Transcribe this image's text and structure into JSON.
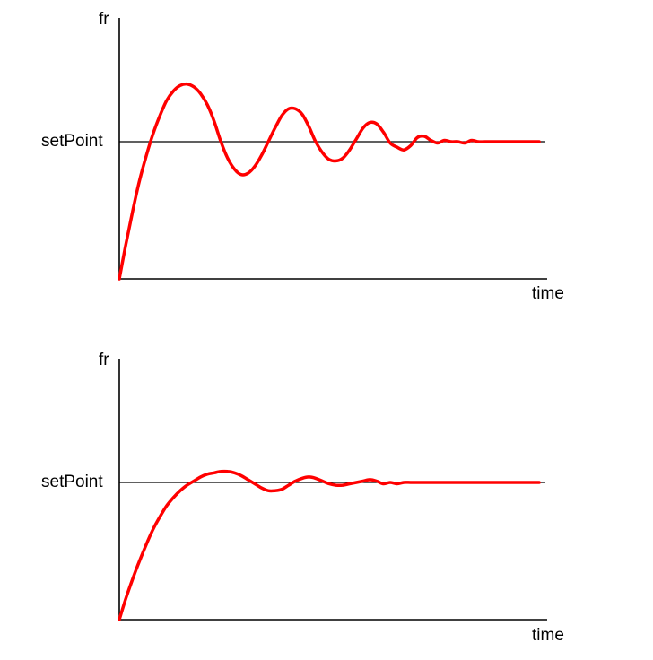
{
  "colors": {
    "axis": "#000000",
    "curve": "#ff0000",
    "background": "#ffffff"
  },
  "chart_data": [
    {
      "type": "line",
      "ylabel": "fr",
      "xlabel": "time",
      "reference_line": {
        "label": "setPoint",
        "y": 1.0
      },
      "ylim": [
        0,
        1.9
      ],
      "xlim": [
        0,
        31.5
      ],
      "grid": false,
      "series": [
        {
          "x": [
            0,
            0.5,
            1,
            1.5,
            2,
            2.5,
            3,
            3.5,
            4,
            4.5,
            5,
            5.5,
            6,
            6.5,
            7,
            7.5,
            8,
            8.5,
            9,
            9.5,
            10,
            10.5,
            11,
            11.5,
            12,
            12.5,
            13,
            13.5,
            14,
            14.5,
            15,
            15.5,
            16,
            16.5,
            17,
            17.5,
            18,
            18.5,
            19,
            19.5,
            20,
            20.5,
            21,
            21.5,
            22,
            22.5,
            23,
            23.5,
            24,
            24.5,
            25,
            25.5,
            26,
            26.5,
            27,
            27.5,
            28,
            28.5,
            29,
            29.5,
            30,
            30.5,
            31
          ],
          "y": [
            0,
            0.26,
            0.5,
            0.72,
            0.9,
            1.06,
            1.19,
            1.3,
            1.37,
            1.41,
            1.42,
            1.4,
            1.35,
            1.27,
            1.15,
            1.0,
            0.88,
            0.8,
            0.76,
            0.77,
            0.82,
            0.9,
            1.0,
            1.1,
            1.19,
            1.24,
            1.24,
            1.2,
            1.11,
            1.0,
            0.92,
            0.87,
            0.86,
            0.88,
            0.94,
            1.02,
            1.1,
            1.14,
            1.13,
            1.07,
            0.99,
            0.96,
            0.94,
            0.97,
            1.03,
            1.04,
            1.01,
            0.99,
            1.01,
            1.0,
            1.0,
            0.99,
            1.01,
            1.0,
            1.0,
            1.0,
            1.0,
            1.0,
            1.0,
            1.0,
            1.0,
            1.0,
            1.0
          ]
        }
      ]
    },
    {
      "type": "line",
      "ylabel": "fr",
      "xlabel": "time",
      "reference_line": {
        "label": "setPoint",
        "y": 1.0
      },
      "ylim": [
        0,
        1.9
      ],
      "xlim": [
        0,
        31.5
      ],
      "grid": false,
      "series": [
        {
          "x": [
            0,
            0.5,
            1,
            1.5,
            2,
            2.5,
            3,
            3.5,
            4,
            4.5,
            5,
            5.5,
            6,
            6.5,
            7,
            7.5,
            8,
            8.5,
            9,
            9.5,
            10,
            10.5,
            11,
            11.5,
            12,
            12.5,
            13,
            13.5,
            14,
            14.5,
            15,
            15.5,
            16,
            16.5,
            17,
            17.5,
            18,
            18.5,
            19,
            19.5,
            20,
            20.5,
            21,
            21.5,
            22,
            22.5,
            23,
            23.5,
            24,
            24.5,
            25,
            25.5,
            26,
            26.5,
            27,
            27.5,
            28,
            28.5,
            29,
            29.5,
            30,
            30.5,
            31
          ],
          "y": [
            0,
            0.16,
            0.3,
            0.43,
            0.55,
            0.66,
            0.75,
            0.83,
            0.89,
            0.94,
            0.98,
            1.01,
            1.04,
            1.06,
            1.07,
            1.08,
            1.08,
            1.07,
            1.05,
            1.02,
            0.99,
            0.96,
            0.94,
            0.94,
            0.95,
            0.98,
            1.01,
            1.03,
            1.04,
            1.03,
            1.01,
            0.99,
            0.98,
            0.98,
            0.99,
            1.0,
            1.01,
            1.02,
            1.01,
            0.99,
            1.0,
            0.99,
            1.0,
            1.0,
            1.0,
            1.0,
            1.0,
            1.0,
            1.0,
            1.0,
            1.0,
            1.0,
            1.0,
            1.0,
            1.0,
            1.0,
            1.0,
            1.0,
            1.0,
            1.0,
            1.0,
            1.0,
            1.0
          ]
        }
      ]
    }
  ]
}
